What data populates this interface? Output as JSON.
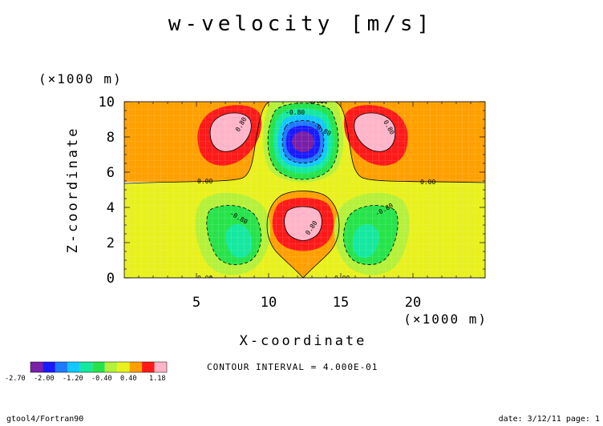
{
  "chart_data": {
    "type": "contour",
    "title": "w-velocity [m/s]",
    "xlabel": "X-coordinate",
    "ylabel": "Z-coordinate",
    "x_unit": "(×1000 m)",
    "y_unit": "(×1000 m)",
    "xlim": [
      0,
      25
    ],
    "ylim": [
      0,
      10
    ],
    "x_ticks": [
      "5",
      "10",
      "15",
      "20"
    ],
    "y_ticks": [
      "0",
      "2",
      "4",
      "6",
      "8",
      "10"
    ],
    "contour_labels": [
      "0.00",
      "0.00",
      "0.00",
      "0.00",
      "0.00",
      "0.00",
      "0.80",
      "0.80",
      "0.80",
      "-0.80",
      "-0.80",
      "-0.80",
      "-0.80"
    ],
    "colorbar": {
      "labels": [
        "-2.70",
        "-2.00",
        "-1.20",
        "-0.40",
        "0.40",
        "1.18"
      ],
      "colors": [
        "#7a1fa8",
        "#1a1aff",
        "#1e7bff",
        "#12c8ff",
        "#16e8a0",
        "#27e34b",
        "#b5f03a",
        "#e8f01e",
        "#ffa000",
        "#ff1a1a",
        "#ffb4c8"
      ]
    },
    "contour_interval": "CONTOUR INTERVAL = 4.000E-01",
    "fields": [
      {
        "level": "upper",
        "sign": "-",
        "center": [
          12.5,
          7.6
        ],
        "min": -2.7
      },
      {
        "level": "upper",
        "sign": "+",
        "center": [
          7.8,
          8.4
        ],
        "max": 1.18
      },
      {
        "level": "upper",
        "sign": "+",
        "center": [
          17.2,
          8.4
        ],
        "max": 1.18
      },
      {
        "level": "lower",
        "sign": "+",
        "center": [
          12.5,
          2.9
        ],
        "max": 1.18
      },
      {
        "level": "lower",
        "sign": "-",
        "center": [
          8.3,
          1.8
        ]
      },
      {
        "level": "lower",
        "sign": "-",
        "center": [
          16.7,
          1.8
        ]
      }
    ]
  },
  "footer": {
    "left": "gtool4/Fortran90",
    "right": "date: 3/12/11 page: 1"
  }
}
